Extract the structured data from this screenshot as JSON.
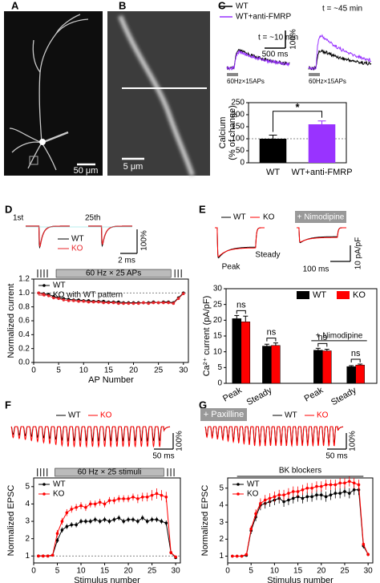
{
  "images": [
    {
      "label": "A",
      "scale_bar": "50 μm"
    },
    {
      "label": "B",
      "scale_bar": "5 μm"
    }
  ],
  "chart_data": [
    {
      "type": "bar",
      "panel": "C",
      "trace_legend": [
        "WT",
        "WT+anti-FMRP"
      ],
      "insets": {
        "time_1": "t = ~10 min",
        "time_2": "t = ~45 min",
        "scale_x": "500 ms",
        "scale_y": "100%",
        "stim_1": "60Hz×15APs",
        "stim_2": "60Hz×15APs"
      },
      "categories": [
        "WT",
        "WT+anti-FMRP"
      ],
      "values": [
        100,
        160
      ],
      "errors": [
        15,
        14
      ],
      "colors": [
        "#000000",
        "#9933ff"
      ],
      "ylabel": [
        "Calcium",
        "(% of change)"
      ],
      "ylim": [
        0,
        250
      ],
      "yticks": [
        0,
        50,
        100,
        150,
        200,
        250
      ],
      "reference_line": 100,
      "significance": "*"
    },
    {
      "type": "line",
      "panel": "D",
      "insets": {
        "first": "1st",
        "last": "25th",
        "legend_1": "WT",
        "legend_2": "KO",
        "scale_y": "100%",
        "scale_x": "2 ms"
      },
      "stimulus": "60 Hz × 25 APs",
      "xlabel": "AP Number",
      "ylabel": "Normalized current",
      "x": [
        1,
        2,
        3,
        4,
        5,
        6,
        7,
        8,
        9,
        10,
        11,
        12,
        13,
        14,
        15,
        16,
        17,
        18,
        19,
        20,
        21,
        22,
        23,
        24,
        25,
        26,
        27,
        28,
        29,
        30
      ],
      "series": [
        {
          "name": "WT",
          "color": "#000000",
          "values": [
            1.0,
            0.99,
            0.98,
            0.95,
            0.93,
            0.92,
            0.91,
            0.9,
            0.9,
            0.89,
            0.89,
            0.88,
            0.88,
            0.88,
            0.87,
            0.87,
            0.87,
            0.86,
            0.86,
            0.86,
            0.86,
            0.86,
            0.86,
            0.87,
            0.86,
            0.87,
            0.87,
            0.86,
            0.93,
            1.0
          ],
          "errors": [
            0.01,
            0.02,
            0.02,
            0.02,
            0.02,
            0.02,
            0.02,
            0.02,
            0.02,
            0.02,
            0.02,
            0.02,
            0.02,
            0.02,
            0.02,
            0.02,
            0.02,
            0.02,
            0.02,
            0.02,
            0.02,
            0.02,
            0.02,
            0.02,
            0.02,
            0.02,
            0.02,
            0.02,
            0.02,
            0.02
          ]
        },
        {
          "name": "KO with WT pattern",
          "color": "#e8252a",
          "values": [
            1.0,
            0.98,
            0.96,
            0.93,
            0.92,
            0.9,
            0.89,
            0.89,
            0.88,
            0.88,
            0.87,
            0.87,
            0.87,
            0.86,
            0.86,
            0.86,
            0.85,
            0.85,
            0.85,
            0.85,
            0.85,
            0.86,
            0.85,
            0.86,
            0.86,
            0.86,
            0.86,
            0.85,
            0.92,
            0.99
          ],
          "errors": [
            0.01,
            0.02,
            0.02,
            0.02,
            0.02,
            0.02,
            0.02,
            0.02,
            0.02,
            0.02,
            0.02,
            0.02,
            0.02,
            0.02,
            0.02,
            0.02,
            0.02,
            0.02,
            0.02,
            0.02,
            0.02,
            0.02,
            0.02,
            0.02,
            0.02,
            0.02,
            0.02,
            0.02,
            0.02,
            0.02
          ]
        }
      ],
      "xlim": [
        0,
        31
      ],
      "xticks": [
        0,
        5,
        10,
        15,
        20,
        25,
        30
      ],
      "ylim": [
        0,
        1.2
      ],
      "yticks": [
        {
          "value": 0,
          "label": "0.0"
        },
        0.2,
        0.4,
        0.6,
        0.8,
        {
          "value": 1,
          "label": "1.0"
        },
        1.2
      ],
      "reference_line": 1
    },
    {
      "type": "groupbar",
      "panel": "E",
      "insets": {
        "legend_1": "WT",
        "legend_2": "KO",
        "drug": "+ Nimodipine",
        "peak": "Peak",
        "steady": "Steady",
        "scale_x": "100 ms",
        "scale_y": "10 pA/pF"
      },
      "categories": [
        "Peak",
        "Steady",
        "Peak",
        "Steady"
      ],
      "group_label": "+ Nimodipine",
      "ylabel": "Ca²⁺ current (pA/pF)",
      "series": [
        {
          "name": "WT",
          "color": "#000000",
          "values": [
            20.5,
            11.8,
            10.5,
            5.3
          ],
          "errors": [
            1.0,
            0.6,
            0.6,
            0.3
          ]
        },
        {
          "name": "KO",
          "color": "#ff0000",
          "values": [
            19.5,
            12.0,
            10.3,
            5.8
          ],
          "errors": [
            1.8,
            0.8,
            0.5,
            0.3
          ]
        }
      ],
      "annotations": [
        "ns",
        "ns",
        "ns",
        "ns"
      ],
      "ylim": [
        0,
        30
      ],
      "yticks": [
        0,
        5,
        10,
        15,
        20,
        25,
        30
      ]
    },
    {
      "type": "line",
      "panel": "F",
      "insets": {
        "legend_1": "WT",
        "legend_2": "KO",
        "scale_y": "100%",
        "scale_x": "50 ms"
      },
      "stimulus": "60 Hz × 25 stimuli",
      "xlabel": "Stimulus number",
      "ylabel": "Normalized EPSC",
      "x": [
        1,
        2,
        3,
        4,
        5,
        6,
        7,
        8,
        9,
        10,
        11,
        12,
        13,
        14,
        15,
        16,
        17,
        18,
        19,
        20,
        21,
        22,
        23,
        24,
        25,
        26,
        27,
        28,
        29,
        30
      ],
      "series": [
        {
          "name": "WT",
          "color": "#000000",
          "values": [
            1.0,
            1.0,
            1.0,
            1.05,
            1.9,
            2.5,
            2.7,
            2.8,
            2.8,
            3.0,
            3.0,
            3.0,
            3.1,
            3.0,
            3.1,
            3.0,
            3.1,
            3.2,
            3.0,
            3.1,
            3.1,
            3.0,
            3.2,
            3.0,
            3.1,
            3.1,
            3.0,
            2.9,
            1.2,
            0.9
          ],
          "errors": [
            0.05,
            0.05,
            0.05,
            0.05,
            0.15,
            0.15,
            0.15,
            0.15,
            0.15,
            0.15,
            0.15,
            0.15,
            0.15,
            0.15,
            0.15,
            0.15,
            0.15,
            0.15,
            0.15,
            0.15,
            0.15,
            0.15,
            0.15,
            0.15,
            0.15,
            0.15,
            0.15,
            0.15,
            0.1,
            0.05
          ]
        },
        {
          "name": "KO",
          "color": "#ff0000",
          "values": [
            1.0,
            1.0,
            1.0,
            1.05,
            2.3,
            3.0,
            3.5,
            3.7,
            3.8,
            3.9,
            3.8,
            4.0,
            4.0,
            4.1,
            4.0,
            4.2,
            4.2,
            4.3,
            4.3,
            4.3,
            4.4,
            4.3,
            4.4,
            4.4,
            4.5,
            4.6,
            4.5,
            4.4,
            1.2,
            0.95
          ],
          "errors": [
            0.05,
            0.05,
            0.05,
            0.05,
            0.2,
            0.2,
            0.2,
            0.2,
            0.2,
            0.2,
            0.2,
            0.2,
            0.2,
            0.2,
            0.2,
            0.2,
            0.2,
            0.2,
            0.2,
            0.2,
            0.2,
            0.25,
            0.25,
            0.25,
            0.3,
            0.3,
            0.3,
            0.3,
            0.1,
            0.05
          ]
        }
      ],
      "xlim": [
        0,
        31
      ],
      "xticks": [
        0,
        5,
        10,
        15,
        20,
        25,
        30
      ],
      "ylim": [
        0.6,
        5.5
      ],
      "yticks": [
        1,
        2,
        3,
        4,
        5
      ],
      "reference_line": 1
    },
    {
      "type": "line",
      "panel": "G",
      "insets": {
        "drug": "+ Paxilline",
        "legend_1": "WT",
        "legend_2": "KO",
        "scale_y": "100%",
        "scale_x": "50 ms"
      },
      "stimulus": "BK blockers",
      "xlabel": "Stimulus number",
      "ylabel": "Normalized EPSC",
      "x": [
        1,
        2,
        3,
        4,
        5,
        6,
        7,
        8,
        9,
        10,
        11,
        12,
        13,
        14,
        15,
        16,
        17,
        18,
        19,
        20,
        21,
        22,
        23,
        24,
        25,
        26,
        27,
        28,
        29,
        30
      ],
      "series": [
        {
          "name": "WT",
          "color": "#000000",
          "values": [
            1.0,
            1.0,
            1.0,
            1.05,
            2.5,
            3.3,
            4.0,
            4.1,
            4.2,
            4.3,
            4.4,
            4.2,
            4.3,
            4.4,
            4.5,
            4.4,
            4.5,
            4.5,
            4.6,
            4.6,
            4.5,
            4.6,
            4.7,
            4.7,
            4.8,
            4.7,
            4.9,
            4.9,
            1.6,
            1.1
          ],
          "errors": [
            0.05,
            0.05,
            0.05,
            0.05,
            0.2,
            0.25,
            0.3,
            0.3,
            0.3,
            0.3,
            0.3,
            0.3,
            0.3,
            0.3,
            0.3,
            0.3,
            0.3,
            0.3,
            0.3,
            0.3,
            0.3,
            0.3,
            0.3,
            0.3,
            0.3,
            0.3,
            0.3,
            0.3,
            0.15,
            0.1
          ]
        },
        {
          "name": "KO",
          "color": "#ff0000",
          "values": [
            1.0,
            1.0,
            1.0,
            1.1,
            2.6,
            3.5,
            4.1,
            4.3,
            4.4,
            4.5,
            4.6,
            4.6,
            4.7,
            4.8,
            4.8,
            4.9,
            5.0,
            5.0,
            5.1,
            5.1,
            5.2,
            5.2,
            5.2,
            5.3,
            5.3,
            5.4,
            5.3,
            5.2,
            1.7,
            1.1
          ],
          "errors": [
            0.05,
            0.05,
            0.05,
            0.05,
            0.2,
            0.25,
            0.3,
            0.3,
            0.3,
            0.3,
            0.3,
            0.3,
            0.3,
            0.3,
            0.3,
            0.3,
            0.3,
            0.3,
            0.3,
            0.3,
            0.3,
            0.3,
            0.3,
            0.3,
            0.3,
            0.3,
            0.3,
            0.3,
            0.15,
            0.1
          ]
        }
      ],
      "xlim": [
        0,
        31
      ],
      "xticks": [
        0,
        5,
        10,
        15,
        20,
        25,
        30
      ],
      "ylim": [
        0.6,
        5.6
      ],
      "yticks": [
        1,
        2,
        3,
        4,
        5
      ]
    }
  ]
}
